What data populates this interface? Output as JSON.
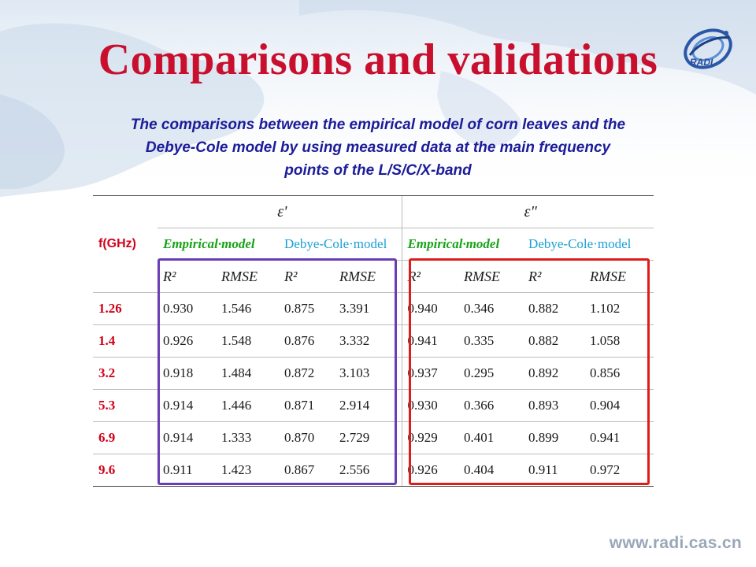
{
  "slide": {
    "title": "Comparisons and validations",
    "subtitle_lines": [
      "The comparisons between the empirical model of corn leaves and the",
      "Debye-Cole model by using measured data at the main frequency",
      "points of the L/S/C/X-band"
    ],
    "logo_text": "RADI",
    "website": "www.radi.cas.cn"
  },
  "table": {
    "freq_header": "f(GHz)",
    "eps_prime": "ε'",
    "eps_double": "ε\"",
    "model_empirical": "Empirical·model",
    "model_debye": "Debye-Cole·model",
    "metric_r2": "R²",
    "metric_rmse": "RMSE",
    "rows": [
      {
        "f": "1.26",
        "v": [
          "0.930",
          "1.546",
          "0.875",
          "3.391",
          "0.940",
          "0.346",
          "0.882",
          "1.102"
        ]
      },
      {
        "f": "1.4",
        "v": [
          "0.926",
          "1.548",
          "0.876",
          "3.332",
          "0.941",
          "0.335",
          "0.882",
          "1.058"
        ]
      },
      {
        "f": "3.2",
        "v": [
          "0.918",
          "1.484",
          "0.872",
          "3.103",
          "0.937",
          "0.295",
          "0.892",
          "0.856"
        ]
      },
      {
        "f": "5.3",
        "v": [
          "0.914",
          "1.446",
          "0.871",
          "2.914",
          "0.930",
          "0.366",
          "0.893",
          "0.904"
        ]
      },
      {
        "f": "6.9",
        "v": [
          "0.914",
          "1.333",
          "0.870",
          "2.729",
          "0.929",
          "0.401",
          "0.899",
          "0.941"
        ]
      },
      {
        "f": "9.6",
        "v": [
          "0.911",
          "1.423",
          "0.867",
          "2.556",
          "0.926",
          "0.404",
          "0.911",
          "0.972"
        ]
      }
    ]
  },
  "colors": {
    "title": "#c8102e",
    "subtitle": "#1c1c99",
    "freq": "#d0021b",
    "empirical": "#17a317",
    "debye": "#1aa0d6",
    "highlight_left": "#6a3db5",
    "highlight_right": "#e01b1b"
  }
}
